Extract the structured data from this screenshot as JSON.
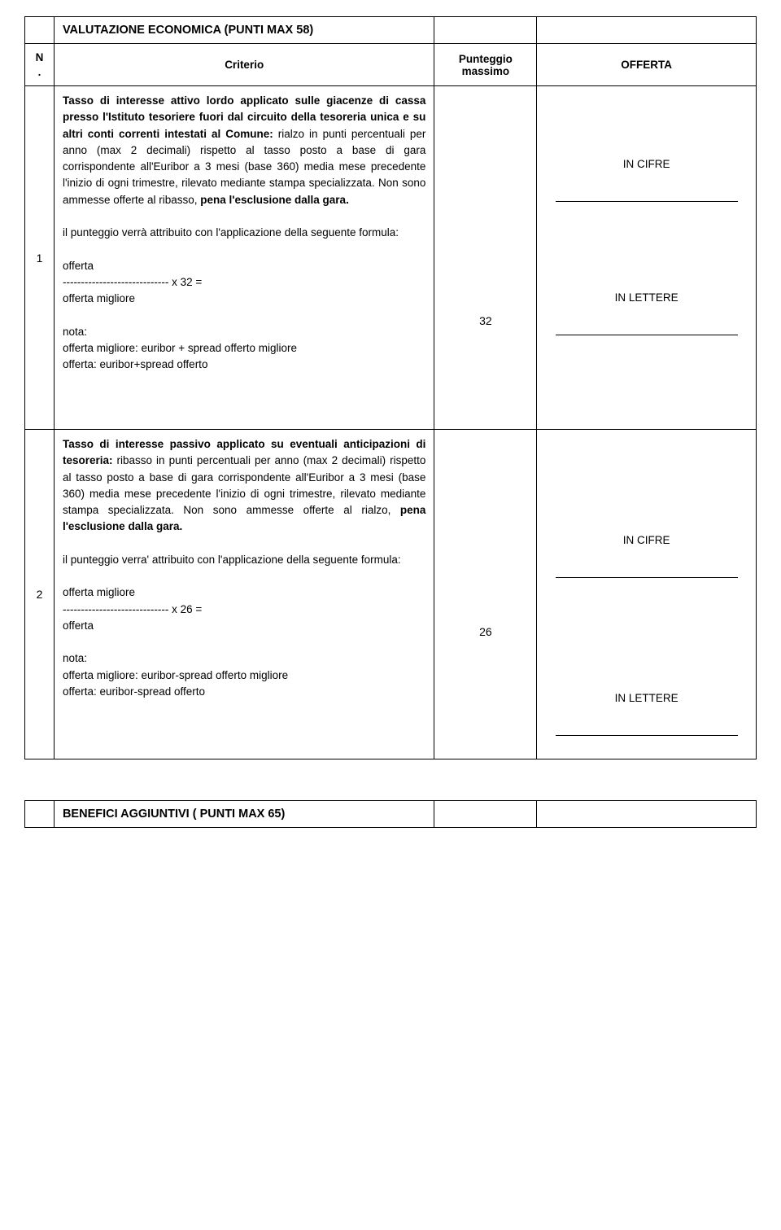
{
  "section1": {
    "title": "VALUTAZIONE ECONOMICA (PUNTI MAX 58)"
  },
  "header": {
    "n": "N.",
    "criterio": "Criterio",
    "punteggio": "Punteggio massimo",
    "offerta": "OFFERTA"
  },
  "row1": {
    "num": "1",
    "intro_bold": "Tasso di interesse  attivo lordo applicato sulle giacenze di cassa presso l'Istituto tesoriere fuori dal circuito della tesoreria unica e su altri conti correnti intestati al Comune:",
    "body1": " rialzo in punti percentuali per anno (max 2 decimali) rispetto al tasso posto a base di gara corrispondente all'Euribor a 3 mesi (base 360) media mese precedente l'inizio di ogni trimestre, rilevato mediante stampa specializzata. Non sono ammesse offerte al ribasso, ",
    "pena": "pena l'esclusione dalla gara.",
    "formula_intro": "il punteggio verrà attribuito con l'applicazione della seguente formula:",
    "formula1": "offerta",
    "formula2": "----------------------------- x 32   =",
    "formula3": "offerta migliore",
    "nota_label": "nota:",
    "nota1": "offerta migliore: euribor + spread  offerto migliore",
    "nota2": "offerta: euribor+spread offerto",
    "punteggio": "32",
    "in_cifre": "IN CIFRE",
    "in_lettere": "IN LETTERE"
  },
  "row2": {
    "num": "2",
    "intro_bold": "Tasso di interesse passivo applicato su eventuali anticipazioni di tesoreria:",
    "body1": " ribasso in punti percentuali per anno (max 2 decimali) rispetto al tasso posto a base di gara corrispondente all'Euribor a 3 mesi (base 360) media mese precedente l'inizio di ogni trimestre, rilevato mediante stampa specializzata. Non sono ammesse offerte al rialzo, ",
    "pena": "pena l'esclusione dalla gara.",
    "formula_intro": "il punteggio verra' attribuito con l'applicazione della seguente formula:",
    "formula1": "offerta migliore",
    "formula2": "----------------------------- x 26   =",
    "formula3": "offerta",
    "nota_label": "nota:",
    "nota1": "offerta migliore: euribor-spread  offerto migliore",
    "nota2": "offerta: euribor-spread offerto",
    "punteggio": "26",
    "in_cifre": "IN CIFRE",
    "in_lettere": "IN LETTERE"
  },
  "section2": {
    "title": "BENEFICI AGGIUNTIVI ( PUNTI MAX 65)"
  }
}
